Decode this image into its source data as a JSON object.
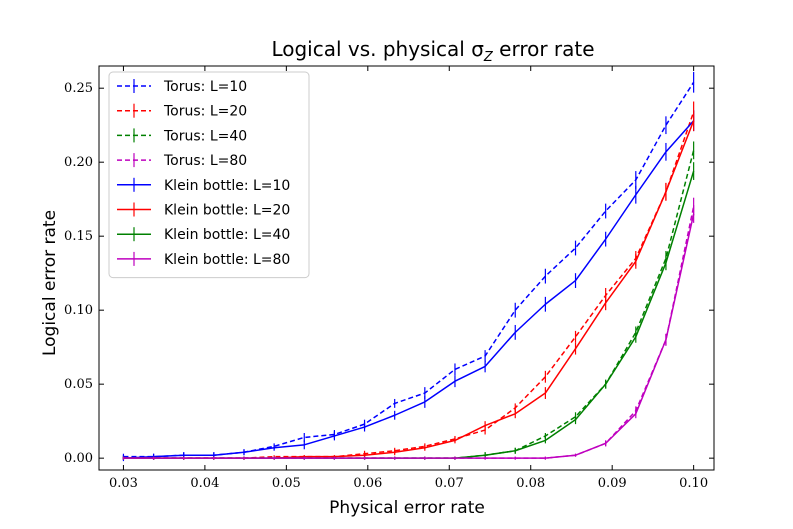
{
  "chart_data": {
    "type": "line",
    "title": "Logical vs. physical σ",
    "title_subscript": "Z",
    "title_suffix": " error rate",
    "xlabel": "Physical error rate",
    "ylabel": "Logical error rate",
    "xlim": [
      0.027,
      0.1025
    ],
    "ylim": [
      -0.008,
      0.265
    ],
    "xticks": [
      0.03,
      0.04,
      0.05,
      0.06,
      0.07,
      0.08,
      0.09,
      0.1
    ],
    "xtick_labels": [
      "0.03",
      "0.04",
      "0.05",
      "0.06",
      "0.07",
      "0.08",
      "0.09",
      "0.10"
    ],
    "yticks": [
      0.0,
      0.05,
      0.1,
      0.15,
      0.2,
      0.25
    ],
    "ytick_labels": [
      "0.00",
      "0.05",
      "0.10",
      "0.15",
      "0.20",
      "0.25"
    ],
    "legend_position": "top-left",
    "x": [
      0.03,
      0.0337,
      0.0374,
      0.0411,
      0.0448,
      0.0485,
      0.0522,
      0.0559,
      0.0596,
      0.0633,
      0.067,
      0.0707,
      0.0744,
      0.0781,
      0.0818,
      0.0855,
      0.0892,
      0.0929,
      0.0966,
      0.1
    ],
    "series": [
      {
        "name": "Torus: L=10",
        "color": "#0000ff",
        "style": "dashed",
        "values": [
          0.001,
          0.001,
          0.002,
          0.002,
          0.004,
          0.008,
          0.014,
          0.016,
          0.023,
          0.037,
          0.044,
          0.06,
          0.069,
          0.1,
          0.123,
          0.142,
          0.167,
          0.188,
          0.225,
          0.254
        ],
        "errors": [
          0.002,
          0.002,
          0.002,
          0.002,
          0.002,
          0.002,
          0.003,
          0.003,
          0.003,
          0.003,
          0.004,
          0.004,
          0.004,
          0.005,
          0.005,
          0.005,
          0.005,
          0.006,
          0.006,
          0.007
        ]
      },
      {
        "name": "Torus: L=20",
        "color": "#ff0000",
        "style": "dashed",
        "values": [
          0.0,
          0.0,
          0.0,
          0.0,
          0.0,
          0.001,
          0.001,
          0.001,
          0.003,
          0.005,
          0.008,
          0.013,
          0.019,
          0.034,
          0.055,
          0.082,
          0.11,
          0.135,
          0.18,
          0.234
        ],
        "errors": [
          0.001,
          0.001,
          0.001,
          0.001,
          0.001,
          0.001,
          0.001,
          0.001,
          0.002,
          0.002,
          0.002,
          0.002,
          0.003,
          0.003,
          0.004,
          0.004,
          0.005,
          0.005,
          0.006,
          0.007
        ]
      },
      {
        "name": "Torus: L=40",
        "color": "#008000",
        "style": "dashed",
        "values": [
          0.0,
          0.0,
          0.0,
          0.0,
          0.0,
          0.0,
          0.0,
          0.0,
          0.0,
          0.0,
          0.0,
          0.0,
          0.002,
          0.005,
          0.015,
          0.028,
          0.05,
          0.085,
          0.135,
          0.208
        ],
        "errors": [
          0.001,
          0.001,
          0.001,
          0.001,
          0.001,
          0.001,
          0.001,
          0.001,
          0.001,
          0.001,
          0.001,
          0.001,
          0.002,
          0.002,
          0.002,
          0.003,
          0.003,
          0.004,
          0.005,
          0.006
        ]
      },
      {
        "name": "Torus: L=80",
        "color": "#bf00bf",
        "style": "dashed",
        "values": [
          0.0,
          0.0,
          0.0,
          0.0,
          0.0,
          0.0,
          0.0,
          0.0,
          0.0,
          0.0,
          0.0,
          0.0,
          0.0,
          0.0,
          0.0,
          0.002,
          0.01,
          0.032,
          0.08,
          0.17
        ],
        "errors": [
          0.001,
          0.001,
          0.001,
          0.001,
          0.001,
          0.001,
          0.001,
          0.001,
          0.001,
          0.001,
          0.001,
          0.001,
          0.001,
          0.001,
          0.001,
          0.001,
          0.002,
          0.003,
          0.004,
          0.006
        ]
      },
      {
        "name": "Klein bottle: L=10",
        "color": "#0000ff",
        "style": "solid",
        "values": [
          0.0,
          0.001,
          0.002,
          0.002,
          0.004,
          0.007,
          0.009,
          0.015,
          0.021,
          0.029,
          0.038,
          0.052,
          0.062,
          0.085,
          0.104,
          0.12,
          0.148,
          0.178,
          0.207,
          0.228
        ],
        "errors": [
          0.002,
          0.002,
          0.002,
          0.002,
          0.002,
          0.002,
          0.003,
          0.003,
          0.003,
          0.003,
          0.004,
          0.004,
          0.004,
          0.005,
          0.005,
          0.005,
          0.005,
          0.006,
          0.006,
          0.007
        ]
      },
      {
        "name": "Klein bottle: L=20",
        "color": "#ff0000",
        "style": "solid",
        "values": [
          0.0,
          0.0,
          0.0,
          0.0,
          0.0,
          0.0,
          0.001,
          0.001,
          0.002,
          0.004,
          0.007,
          0.012,
          0.022,
          0.03,
          0.044,
          0.074,
          0.105,
          0.133,
          0.18,
          0.228
        ],
        "errors": [
          0.001,
          0.001,
          0.001,
          0.001,
          0.001,
          0.001,
          0.001,
          0.001,
          0.002,
          0.002,
          0.002,
          0.002,
          0.003,
          0.003,
          0.004,
          0.004,
          0.005,
          0.005,
          0.006,
          0.007
        ]
      },
      {
        "name": "Klein bottle: L=40",
        "color": "#008000",
        "style": "solid",
        "values": [
          0.0,
          0.0,
          0.0,
          0.0,
          0.0,
          0.0,
          0.0,
          0.0,
          0.0,
          0.0,
          0.0,
          0.0,
          0.002,
          0.005,
          0.012,
          0.026,
          0.05,
          0.082,
          0.132,
          0.194
        ],
        "errors": [
          0.001,
          0.001,
          0.001,
          0.001,
          0.001,
          0.001,
          0.001,
          0.001,
          0.001,
          0.001,
          0.001,
          0.001,
          0.002,
          0.002,
          0.002,
          0.003,
          0.003,
          0.004,
          0.005,
          0.006
        ]
      },
      {
        "name": "Klein bottle: L=80",
        "color": "#bf00bf",
        "style": "solid",
        "values": [
          0.0,
          0.0,
          0.0,
          0.0,
          0.0,
          0.0,
          0.0,
          0.0,
          0.0,
          0.0,
          0.0,
          0.0,
          0.0,
          0.0,
          0.0,
          0.002,
          0.01,
          0.03,
          0.08,
          0.165
        ],
        "errors": [
          0.001,
          0.001,
          0.001,
          0.001,
          0.001,
          0.001,
          0.001,
          0.001,
          0.001,
          0.001,
          0.001,
          0.001,
          0.001,
          0.001,
          0.001,
          0.001,
          0.002,
          0.003,
          0.004,
          0.006
        ]
      }
    ]
  }
}
